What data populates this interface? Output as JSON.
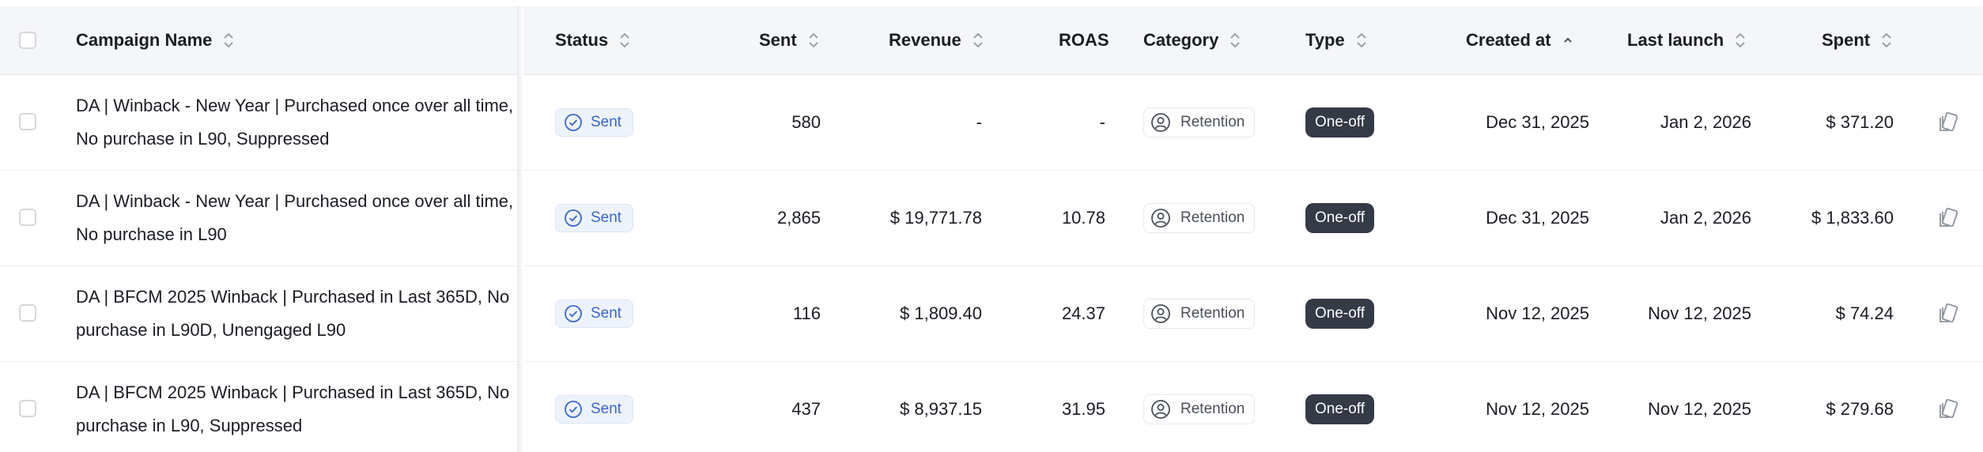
{
  "table": {
    "columns": {
      "campaign_name": "Campaign Name",
      "status": "Status",
      "sent": "Sent",
      "revenue": "Revenue",
      "roas": "ROAS",
      "category": "Category",
      "type": "Type",
      "created_at": "Created at",
      "last_launch": "Last launch",
      "spent": "Spent"
    },
    "sorted_column": "created_at",
    "sort_direction": "ascending",
    "rows": [
      {
        "name": "DA | Winback - New Year | Purchased once over all time, No purchase in L90, Suppressed",
        "status": "Sent",
        "sent": "580",
        "revenue": "-",
        "roas": "-",
        "category": "Retention",
        "type": "One-off",
        "created_at": "Dec 31, 2025",
        "last_launch": "Jan 2, 2026",
        "spent": "$ 371.20"
      },
      {
        "name": "DA | Winback - New Year | Purchased once over all time, No purchase in L90",
        "status": "Sent",
        "sent": "2,865",
        "revenue": "$ 19,771.78",
        "roas": "10.78",
        "category": "Retention",
        "type": "One-off",
        "created_at": "Dec 31, 2025",
        "last_launch": "Jan 2, 2026",
        "spent": "$ 1,833.60"
      },
      {
        "name": "DA | BFCM 2025 Winback | Purchased in Last 365D, No purchase in L90D, Unengaged L90",
        "status": "Sent",
        "sent": "116",
        "revenue": "$ 1,809.40",
        "roas": "24.37",
        "category": "Retention",
        "type": "One-off",
        "created_at": "Nov 12, 2025",
        "last_launch": "Nov 12, 2025",
        "spent": "$ 74.24"
      },
      {
        "name": "DA | BFCM 2025 Winback | Purchased in Last 365D, No purchase in L90, Suppressed",
        "status": "Sent",
        "sent": "437",
        "revenue": "$ 8,937.15",
        "roas": "31.95",
        "category": "Retention",
        "type": "One-off",
        "created_at": "Nov 12, 2025",
        "last_launch": "Nov 12, 2025",
        "spent": "$ 279.68"
      }
    ]
  },
  "icons": {
    "status": "check-circle-icon",
    "category": "user-circle-icon",
    "row_action": "duplicate-icon",
    "sort": "sort-icon",
    "sort_active": "chevron-up-icon"
  },
  "colors": {
    "header_bg": "#f5f6f8",
    "status_text": "#3a68c8",
    "status_bg": "#eef3fb",
    "type_pill_bg": "#343a46"
  }
}
